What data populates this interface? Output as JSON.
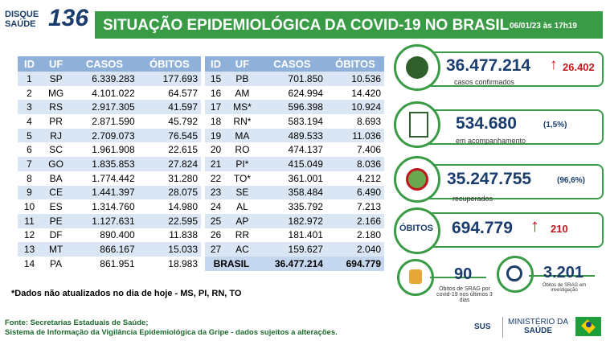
{
  "header": {
    "logo_line1": "DISQUE",
    "logo_line2": "SAÚDE",
    "logo_number": "136",
    "title": "SITUAÇÃO EPIDEMIOLÓGICA DA COVID-19 NO BRASIL",
    "timestamp": "06/01/23 às 17h19"
  },
  "table": {
    "columns": [
      "ID",
      "UF",
      "CASOS",
      "ÓBITOS"
    ],
    "rows": [
      [
        "1",
        "SP",
        "6.339.283",
        "177.693"
      ],
      [
        "2",
        "MG",
        "4.101.022",
        "64.577"
      ],
      [
        "3",
        "RS",
        "2.917.305",
        "41.597"
      ],
      [
        "4",
        "PR",
        "2.871.590",
        "45.792"
      ],
      [
        "5",
        "RJ",
        "2.709.073",
        "76.545"
      ],
      [
        "6",
        "SC",
        "1.961.908",
        "22.615"
      ],
      [
        "7",
        "GO",
        "1.835.853",
        "27.824"
      ],
      [
        "8",
        "BA",
        "1.774.442",
        "31.280"
      ],
      [
        "9",
        "CE",
        "1.441.397",
        "28.075"
      ],
      [
        "10",
        "ES",
        "1.314.760",
        "14.980"
      ],
      [
        "11",
        "PE",
        "1.127.631",
        "22.595"
      ],
      [
        "12",
        "DF",
        "890.400",
        "11.838"
      ],
      [
        "13",
        "MT",
        "866.167",
        "15.033"
      ],
      [
        "14",
        "PA",
        "861.951",
        "18.983"
      ],
      [
        "15",
        "PB",
        "701.850",
        "10.536"
      ],
      [
        "16",
        "AM",
        "624.994",
        "14.420"
      ],
      [
        "17",
        "MS*",
        "596.398",
        "10.924"
      ],
      [
        "18",
        "RN*",
        "583.194",
        "8.693"
      ],
      [
        "19",
        "MA",
        "489.533",
        "11.036"
      ],
      [
        "20",
        "RO",
        "474.137",
        "7.406"
      ],
      [
        "21",
        "PI*",
        "415.049",
        "8.036"
      ],
      [
        "22",
        "TO*",
        "361.001",
        "4.212"
      ],
      [
        "23",
        "SE",
        "358.484",
        "6.490"
      ],
      [
        "24",
        "AL",
        "335.792",
        "7.213"
      ],
      [
        "25",
        "AP",
        "182.972",
        "2.166"
      ],
      [
        "26",
        "RR",
        "181.401",
        "2.180"
      ],
      [
        "27",
        "AC",
        "159.627",
        "2.040"
      ]
    ],
    "total": [
      "BRASIL",
      "36.477.214",
      "694.779"
    ]
  },
  "note": "*Dados não atualizados no dia de hoje - MS, PI, RN, TO",
  "source": [
    "Fonte: Secretarias Estaduais de Saúde;",
    "Sistema de Informação da Vigilância Epidemiológica da Gripe - dados sujeitos a alterações."
  ],
  "cards": {
    "confirmed": {
      "value": "36.477.214",
      "increase": "26.402",
      "label": "casos confirmados"
    },
    "monitoring": {
      "value": "534.680",
      "percent": "(1,5%)",
      "label": "em acompanhamento"
    },
    "recovered": {
      "value": "35.247.755",
      "percent": "(96,6%)",
      "label": "recuperados"
    },
    "deaths": {
      "title": "ÓBITOS",
      "value": "694.779",
      "increase": "210"
    },
    "srag": {
      "value": "90",
      "label": "Óbitos de SRAG por covid-19 nos últimos 3 dias"
    },
    "investigation": {
      "value": "3.201",
      "label": "Óbitos de SRAG em investigação"
    }
  },
  "logos": {
    "sus": "SUS",
    "ministry_line1": "MINISTÉRIO DA",
    "ministry_line2": "SAÚDE"
  }
}
